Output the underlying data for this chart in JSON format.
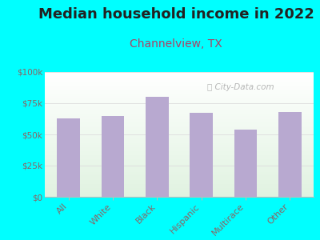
{
  "title": "Median household income in 2022",
  "subtitle": "Channelview, TX",
  "categories": [
    "All",
    "White",
    "Black",
    "Hispanic",
    "Multirace",
    "Other"
  ],
  "values": [
    63000,
    65000,
    80000,
    67000,
    54000,
    68000
  ],
  "bar_color": "#b8a9d0",
  "title_fontsize": 13,
  "subtitle_fontsize": 10,
  "subtitle_color": "#aa4466",
  "title_color": "#222222",
  "tick_label_color": "#886666",
  "background_color": "#00ffff",
  "watermark": "ⓘ City-Data.com",
  "ylim": [
    0,
    100000
  ],
  "yticks": [
    0,
    25000,
    50000,
    75000,
    100000
  ],
  "ytick_labels": [
    "$0",
    "$25k",
    "$50k",
    "$75k",
    "$100k"
  ],
  "grid_color": "#dddddd"
}
